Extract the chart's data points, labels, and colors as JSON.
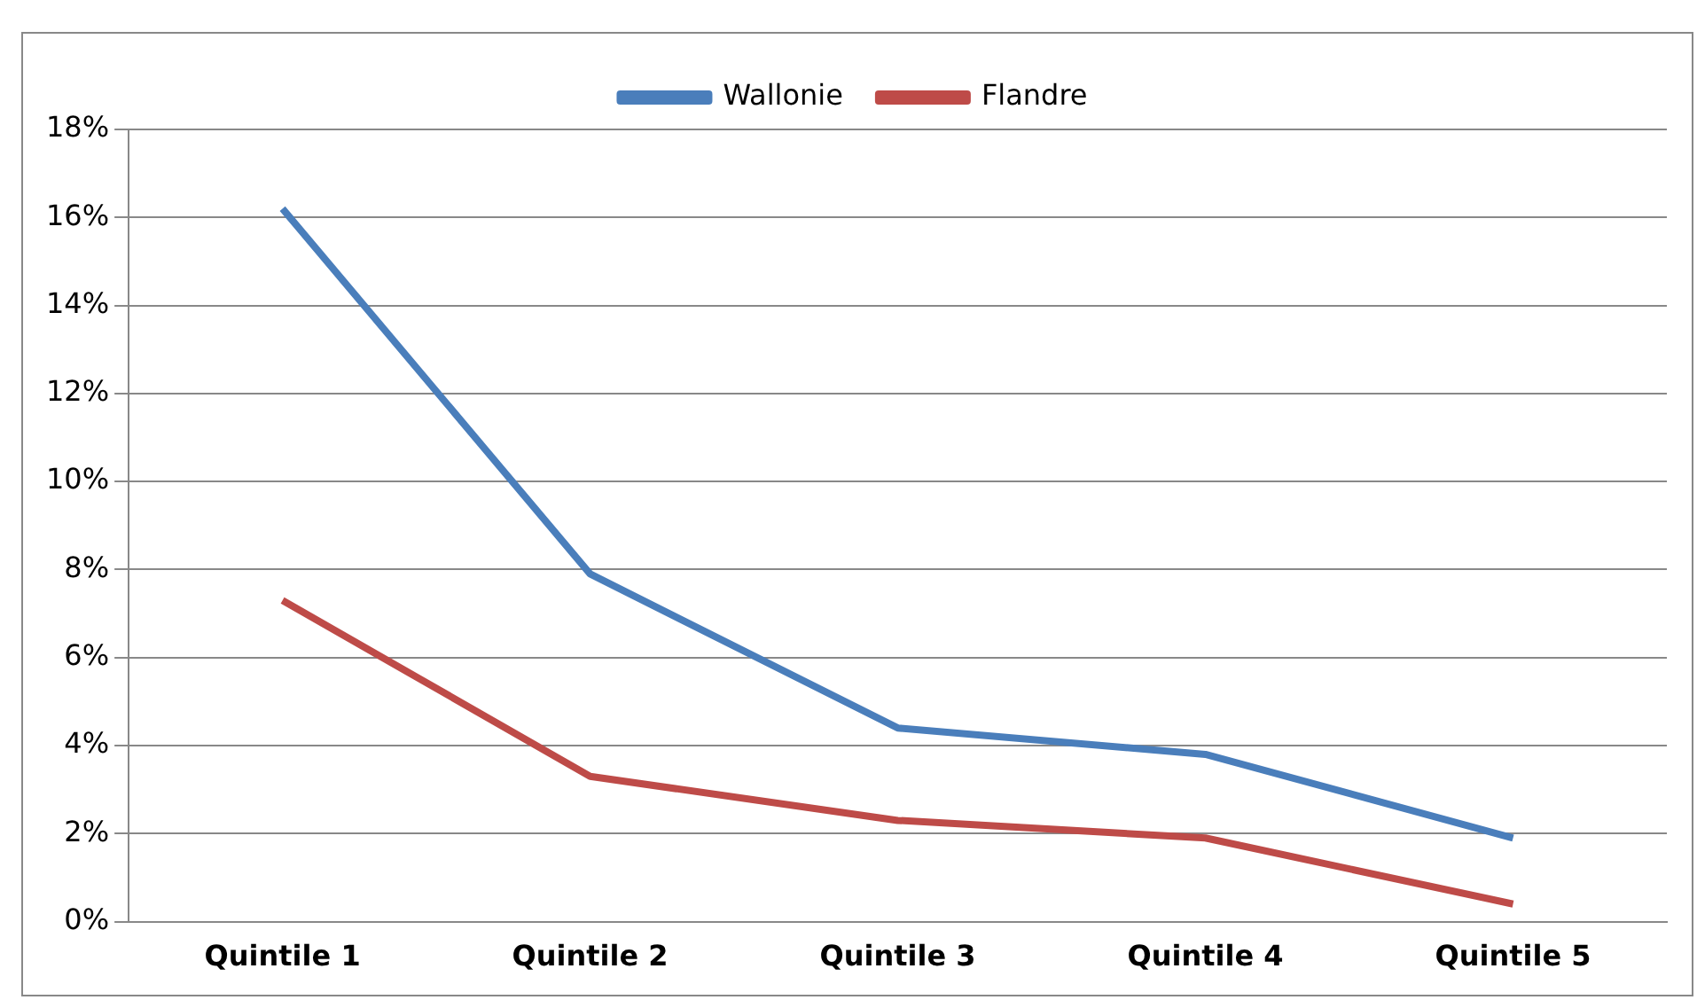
{
  "chart_data": {
    "type": "line",
    "categories": [
      "Quintile 1",
      "Quintile 2",
      "Quintile 3",
      "Quintile 4",
      "Quintile 5"
    ],
    "series": [
      {
        "name": "Wallonie",
        "color": "#4a7ebb",
        "values": [
          16.2,
          7.9,
          4.4,
          3.8,
          1.9
        ]
      },
      {
        "name": "Flandre",
        "color": "#be4b48",
        "values": [
          7.3,
          3.3,
          2.3,
          1.9,
          0.4
        ]
      }
    ],
    "ylim": [
      0,
      18
    ],
    "yticks": [
      {
        "value": 0,
        "label": "0%"
      },
      {
        "value": 2,
        "label": "2%"
      },
      {
        "value": 4,
        "label": "4%"
      },
      {
        "value": 6,
        "label": "6%"
      },
      {
        "value": 8,
        "label": "8%"
      },
      {
        "value": 10,
        "label": "10%"
      },
      {
        "value": 12,
        "label": "12%"
      },
      {
        "value": 14,
        "label": "14%"
      },
      {
        "value": 16,
        "label": "16%"
      },
      {
        "value": 18,
        "label": "18%"
      }
    ],
    "grid": "y",
    "legend": "top",
    "marker": "none"
  }
}
